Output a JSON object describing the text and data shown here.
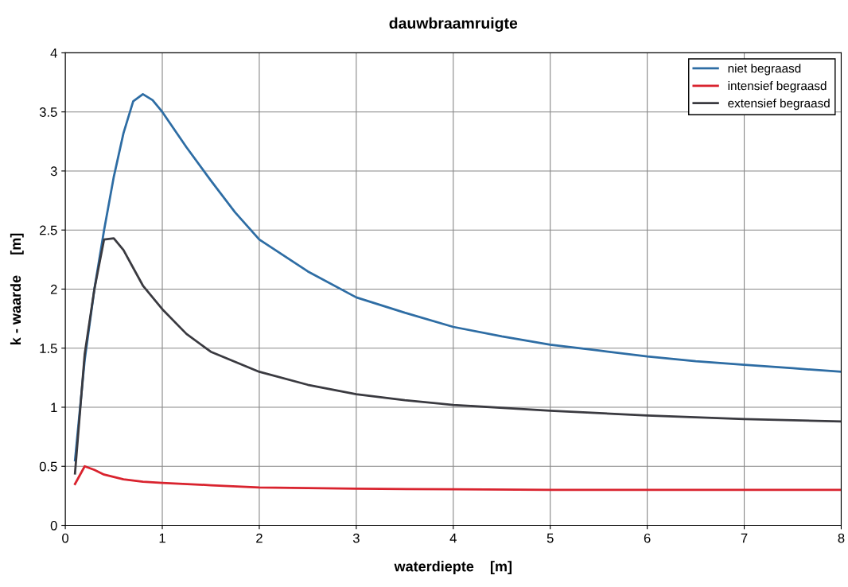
{
  "chart_data": {
    "type": "line",
    "title": "dauwbraamruigte",
    "xlabel": "waterdiepte    [m]",
    "ylabel": "k - waarde     [m]",
    "xlim": [
      0,
      8
    ],
    "xticks": [
      0,
      1,
      2,
      3,
      4,
      5,
      6,
      7,
      8
    ],
    "ylim": [
      0,
      4
    ],
    "yticks": [
      0,
      0.5,
      1,
      1.5,
      2,
      2.5,
      3,
      3.5,
      4
    ],
    "grid": true,
    "legend": "top right",
    "marker": "none",
    "line_style": "solid",
    "series": [
      {
        "name": "niet begraasd",
        "color": "#2e6da4",
        "x": [
          0.1,
          0.2,
          0.3,
          0.4,
          0.5,
          0.6,
          0.7,
          0.8,
          0.9,
          1.0,
          1.25,
          1.5,
          1.75,
          2,
          2.5,
          3,
          3.5,
          4,
          4.5,
          5,
          5.5,
          6,
          6.5,
          7,
          7.5,
          8
        ],
        "values": [
          0.55,
          1.4,
          2.0,
          2.5,
          2.95,
          3.32,
          3.59,
          3.65,
          3.6,
          3.5,
          3.2,
          2.92,
          2.65,
          2.42,
          2.15,
          1.93,
          1.8,
          1.68,
          1.6,
          1.53,
          1.48,
          1.43,
          1.39,
          1.36,
          1.33,
          1.3
        ]
      },
      {
        "name": "intensief begraasd",
        "color": "#d9232e",
        "x": [
          0.1,
          0.2,
          0.3,
          0.4,
          0.5,
          0.6,
          0.8,
          1.0,
          1.5,
          2,
          3,
          4,
          5,
          6,
          7,
          8
        ],
        "values": [
          0.35,
          0.5,
          0.47,
          0.43,
          0.41,
          0.39,
          0.37,
          0.36,
          0.34,
          0.32,
          0.31,
          0.305,
          0.3,
          0.3,
          0.3,
          0.3
        ]
      },
      {
        "name": "extensief begraasd",
        "color": "#3a3a40",
        "x": [
          0.1,
          0.2,
          0.3,
          0.4,
          0.5,
          0.6,
          0.7,
          0.8,
          1.0,
          1.25,
          1.5,
          2,
          2.5,
          3,
          3.5,
          4,
          5,
          6,
          7,
          8
        ],
        "values": [
          0.44,
          1.45,
          2.0,
          2.42,
          2.43,
          2.33,
          2.18,
          2.03,
          1.83,
          1.62,
          1.47,
          1.3,
          1.19,
          1.11,
          1.06,
          1.02,
          0.97,
          0.93,
          0.9,
          0.88
        ]
      }
    ]
  }
}
